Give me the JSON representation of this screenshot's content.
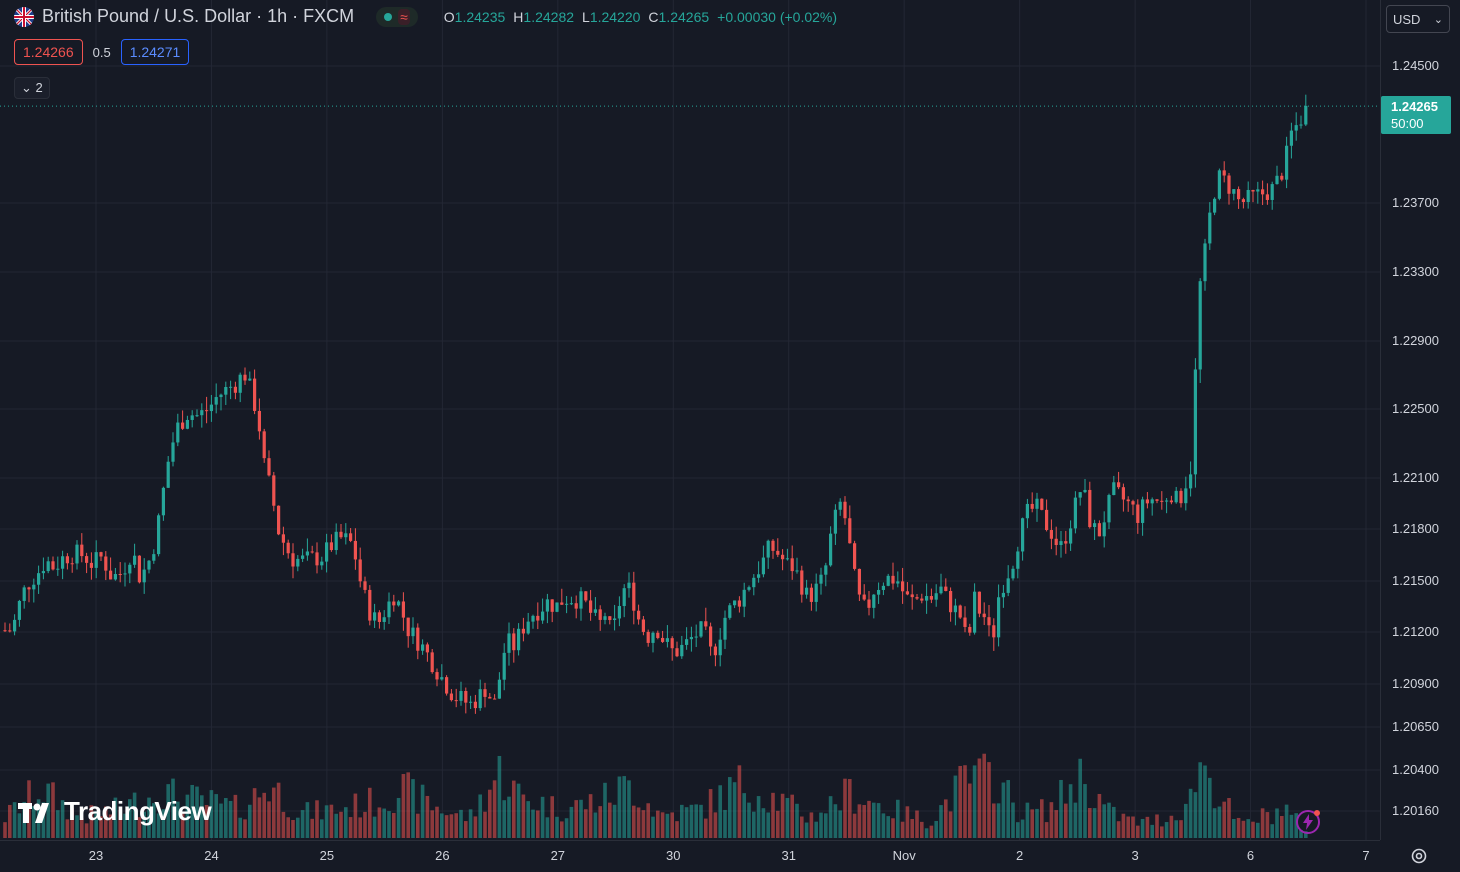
{
  "header": {
    "symbol_title": "British Pound / U.S. Dollar · 1h · FXCM",
    "flag_icon": "uk-us-flag-icon",
    "ohlc": {
      "o_label": "O",
      "o_value": "1.24235",
      "h_label": "H",
      "h_value": "1.24282",
      "l_label": "L",
      "l_value": "1.24220",
      "c_label": "C",
      "c_value": "1.24265",
      "change": "+0.00030 (+0.02%)"
    }
  },
  "quotes": {
    "sell": "1.24266",
    "spread": "0.5",
    "buy": "1.24271"
  },
  "indicators_toggle": {
    "count": "2"
  },
  "currency_select": {
    "value": "USD"
  },
  "last_price": {
    "value": "1.24265",
    "timer": "50:00"
  },
  "price_axis": {
    "ticks": [
      "1.24500",
      "1.23700",
      "1.23300",
      "1.22900",
      "1.22500",
      "1.22100",
      "1.21800",
      "1.21500",
      "1.21200",
      "1.20900",
      "1.20650",
      "1.20400",
      "1.20160"
    ]
  },
  "time_axis": {
    "labels": [
      "23",
      "24",
      "25",
      "26",
      "27",
      "30",
      "31",
      "Nov",
      "2",
      "3",
      "6",
      "7"
    ]
  },
  "branding": {
    "logo_text": "TradingView"
  },
  "colors": {
    "up": "#26a69a",
    "down": "#ef5350",
    "background": "#161a25",
    "grid": "#232734"
  },
  "chart_data": {
    "type": "candlestick",
    "ylim": [
      1.2005,
      1.2465
    ],
    "last": 1.24265,
    "path": [
      [
        0,
        1.2138
      ],
      [
        6,
        1.2118
      ],
      [
        14,
        1.2125
      ],
      [
        22,
        1.2142
      ],
      [
        30,
        1.215
      ],
      [
        38,
        1.2155
      ],
      [
        46,
        1.2162
      ],
      [
        54,
        1.2158
      ],
      [
        64,
        1.2164
      ],
      [
        74,
        1.2166
      ],
      [
        84,
        1.2165
      ],
      [
        92,
        1.216
      ],
      [
        102,
        1.2164
      ],
      [
        112,
        1.2152
      ],
      [
        122,
        1.2155
      ],
      [
        132,
        1.2168
      ],
      [
        140,
        1.2152
      ],
      [
        148,
        1.216
      ],
      [
        156,
        1.2175
      ],
      [
        164,
        1.2205
      ],
      [
        170,
        1.2226
      ],
      [
        178,
        1.224
      ],
      [
        188,
        1.2248
      ],
      [
        198,
        1.2246
      ],
      [
        208,
        1.225
      ],
      [
        218,
        1.2258
      ],
      [
        228,
        1.2262
      ],
      [
        238,
        1.2266
      ],
      [
        244,
        1.2272
      ],
      [
        250,
        1.2262
      ],
      [
        258,
        1.2246
      ],
      [
        264,
        1.2218
      ],
      [
        272,
        1.22
      ],
      [
        278,
        1.218
      ],
      [
        284,
        1.2172
      ],
      [
        292,
        1.2163
      ],
      [
        302,
        1.2162
      ],
      [
        312,
        1.2163
      ],
      [
        322,
        1.2164
      ],
      [
        330,
        1.217
      ],
      [
        340,
        1.2175
      ],
      [
        350,
        1.2173
      ],
      [
        356,
        1.2163
      ],
      [
        362,
        1.2145
      ],
      [
        370,
        1.2132
      ],
      [
        378,
        1.2125
      ],
      [
        386,
        1.2134
      ],
      [
        394,
        1.2142
      ],
      [
        400,
        1.2135
      ],
      [
        408,
        1.2122
      ],
      [
        414,
        1.2118
      ],
      [
        422,
        1.2112
      ],
      [
        430,
        1.2105
      ],
      [
        438,
        1.2097
      ],
      [
        446,
        1.209
      ],
      [
        454,
        1.2083
      ],
      [
        462,
        1.2081
      ],
      [
        470,
        1.2078
      ],
      [
        478,
        1.2082
      ],
      [
        486,
        1.2088
      ],
      [
        494,
        1.2077
      ],
      [
        500,
        1.2095
      ],
      [
        506,
        1.2115
      ],
      [
        514,
        1.2112
      ],
      [
        522,
        1.2122
      ],
      [
        530,
        1.213
      ],
      [
        538,
        1.2133
      ],
      [
        548,
        1.2138
      ],
      [
        556,
        1.2135
      ],
      [
        564,
        1.214
      ],
      [
        574,
        1.214
      ],
      [
        584,
        1.2138
      ],
      [
        592,
        1.213
      ],
      [
        600,
        1.2125
      ],
      [
        606,
        1.2132
      ],
      [
        612,
        1.2116
      ],
      [
        618,
        1.2135
      ],
      [
        626,
        1.2148
      ],
      [
        632,
        1.2142
      ],
      [
        640,
        1.2125
      ],
      [
        648,
        1.2118
      ],
      [
        656,
        1.2124
      ],
      [
        664,
        1.2115
      ],
      [
        674,
        1.2108
      ],
      [
        684,
        1.2112
      ],
      [
        694,
        1.2118
      ],
      [
        704,
        1.2122
      ],
      [
        710,
        1.2108
      ],
      [
        716,
        1.2112
      ],
      [
        724,
        1.2128
      ],
      [
        732,
        1.2135
      ],
      [
        740,
        1.214
      ],
      [
        748,
        1.2148
      ],
      [
        756,
        1.2155
      ],
      [
        762,
        1.216
      ],
      [
        770,
        1.217
      ],
      [
        778,
        1.2166
      ],
      [
        786,
        1.216
      ],
      [
        794,
        1.2158
      ],
      [
        800,
        1.215
      ],
      [
        808,
        1.214
      ],
      [
        816,
        1.2145
      ],
      [
        824,
        1.2152
      ],
      [
        832,
        1.218
      ],
      [
        840,
        1.2195
      ],
      [
        846,
        1.2185
      ],
      [
        852,
        1.216
      ],
      [
        858,
        1.214
      ],
      [
        866,
        1.2132
      ],
      [
        874,
        1.2145
      ],
      [
        882,
        1.215
      ],
      [
        890,
        1.2152
      ],
      [
        898,
        1.215
      ],
      [
        906,
        1.214
      ],
      [
        914,
        1.2138
      ],
      [
        922,
        1.2142
      ],
      [
        932,
        1.214
      ],
      [
        940,
        1.2146
      ],
      [
        946,
        1.214
      ],
      [
        952,
        1.2135
      ],
      [
        960,
        1.213
      ],
      [
        968,
        1.2112
      ],
      [
        974,
        1.214
      ],
      [
        980,
        1.2132
      ],
      [
        986,
        1.2128
      ],
      [
        992,
        1.2112
      ],
      [
        998,
        1.214
      ],
      [
        1004,
        1.215
      ],
      [
        1012,
        1.216
      ],
      [
        1020,
        1.2178
      ],
      [
        1028,
        1.219
      ],
      [
        1036,
        1.2193
      ],
      [
        1044,
        1.2185
      ],
      [
        1052,
        1.2178
      ],
      [
        1060,
        1.2168
      ],
      [
        1068,
        1.218
      ],
      [
        1076,
        1.2195
      ],
      [
        1082,
        1.2206
      ],
      [
        1090,
        1.2185
      ],
      [
        1098,
        1.2176
      ],
      [
        1106,
        1.219
      ],
      [
        1114,
        1.2202
      ],
      [
        1122,
        1.2198
      ],
      [
        1130,
        1.2194
      ],
      [
        1138,
        1.2188
      ],
      [
        1146,
        1.2196
      ],
      [
        1154,
        1.2198
      ],
      [
        1162,
        1.2195
      ],
      [
        1170,
        1.2203
      ],
      [
        1178,
        1.2195
      ],
      [
        1186,
        1.2208
      ],
      [
        1192,
        1.2218
      ],
      [
        1196,
        1.228
      ],
      [
        1200,
        1.2322
      ],
      [
        1206,
        1.2345
      ],
      [
        1212,
        1.2372
      ],
      [
        1218,
        1.2385
      ],
      [
        1224,
        1.2383
      ],
      [
        1232,
        1.2378
      ],
      [
        1240,
        1.237
      ],
      [
        1248,
        1.2372
      ],
      [
        1256,
        1.2374
      ],
      [
        1264,
        1.2376
      ],
      [
        1272,
        1.2378
      ],
      [
        1280,
        1.2385
      ],
      [
        1286,
        1.2396
      ],
      [
        1292,
        1.2412
      ],
      [
        1298,
        1.2416
      ],
      [
        1304,
        1.2423
      ],
      [
        1309,
        1.24265
      ]
    ],
    "volume_peaks": [
      [
        0,
        20
      ],
      [
        40,
        60
      ],
      [
        80,
        25
      ],
      [
        120,
        35
      ],
      [
        160,
        55
      ],
      [
        200,
        45
      ],
      [
        240,
        35
      ],
      [
        270,
        65
      ],
      [
        300,
        30
      ],
      [
        340,
        35
      ],
      [
        380,
        45
      ],
      [
        400,
        60
      ],
      [
        440,
        35
      ],
      [
        470,
        25
      ],
      [
        500,
        80
      ],
      [
        520,
        50
      ],
      [
        560,
        35
      ],
      [
        600,
        45
      ],
      [
        630,
        65
      ],
      [
        660,
        28
      ],
      [
        700,
        35
      ],
      [
        740,
        65
      ],
      [
        780,
        45
      ],
      [
        810,
        25
      ],
      [
        850,
        55
      ],
      [
        890,
        35
      ],
      [
        930,
        20
      ],
      [
        965,
        70
      ],
      [
        995,
        75
      ],
      [
        1020,
        30
      ],
      [
        1050,
        35
      ],
      [
        1080,
        75
      ],
      [
        1110,
        30
      ],
      [
        1140,
        18
      ],
      [
        1170,
        25
      ],
      [
        1190,
        45
      ],
      [
        1200,
        95
      ],
      [
        1215,
        60
      ],
      [
        1240,
        15
      ],
      [
        1260,
        25
      ],
      [
        1285,
        35
      ],
      [
        1305,
        10
      ]
    ]
  }
}
